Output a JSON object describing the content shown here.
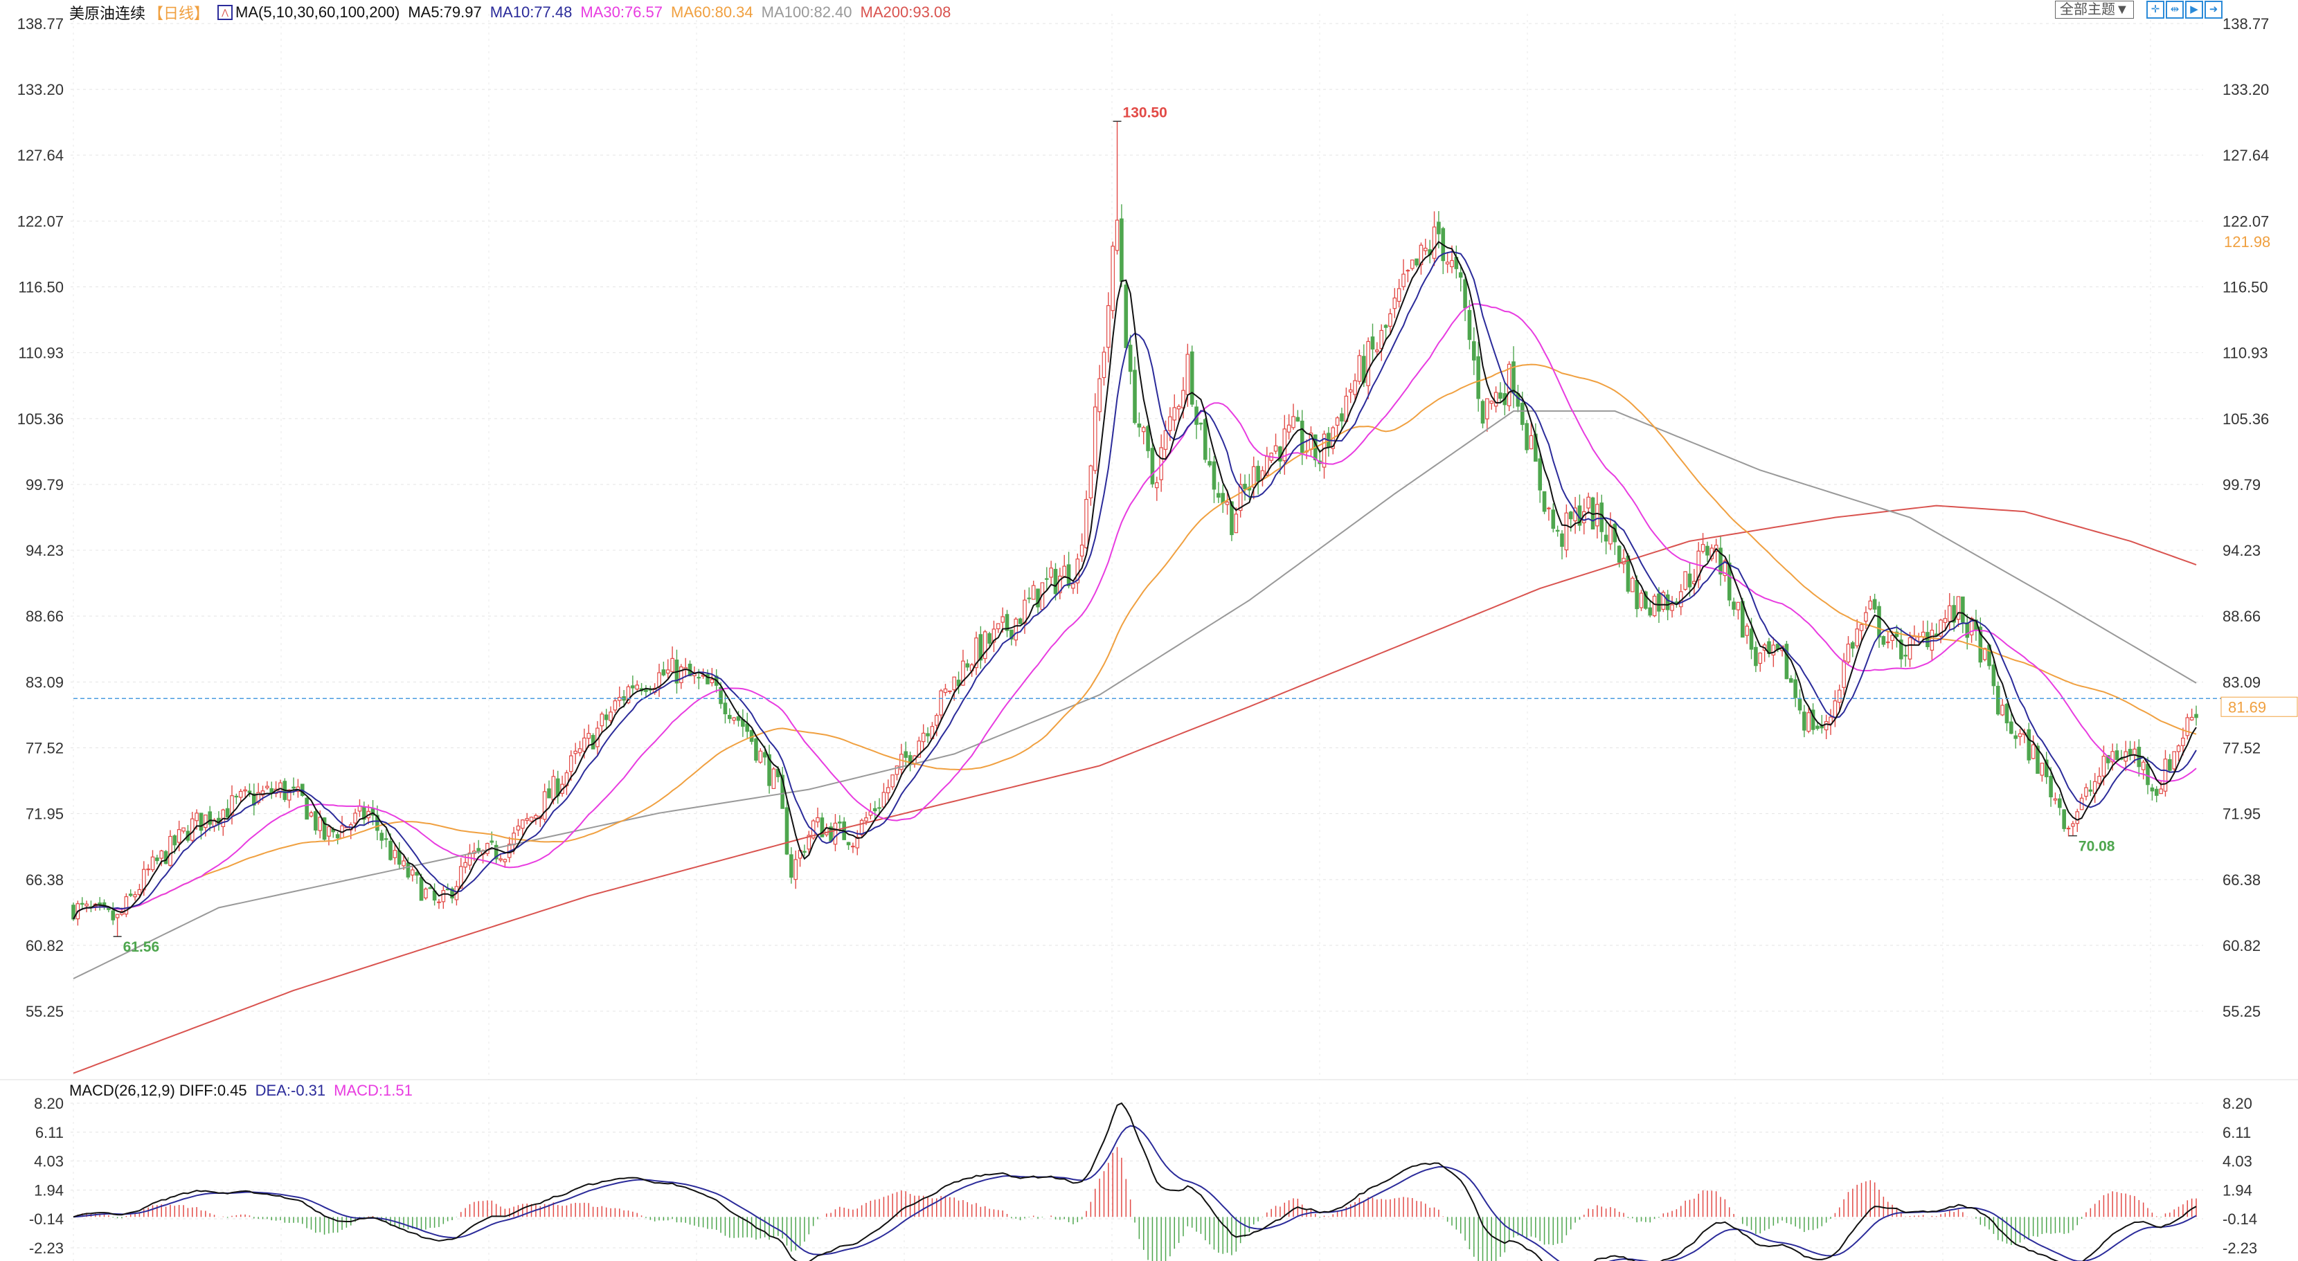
{
  "header": {
    "instrument": "美原油连续",
    "period": "【日线】",
    "ma_params": "MA(5,10,30,60,100,200)",
    "ma5": "MA5:79.97",
    "ma10": "MA10:77.48",
    "ma30": "MA30:76.57",
    "ma60": "MA60:80.34",
    "ma100": "MA100:82.40",
    "ma200": "MA200:93.08"
  },
  "toolbar": {
    "theme_select": "全部主题▼",
    "icons": [
      "crosshair-icon",
      "zoom-range-icon",
      "play-forward-icon",
      "move-right-icon"
    ]
  },
  "colors": {
    "up": "#e24a46",
    "down": "#4ea64e",
    "ma5": "#111111",
    "ma10": "#2b2b9a",
    "ma30": "#e83ce0",
    "ma60": "#f0a040",
    "ma100": "#999999",
    "ma200": "#d9534f",
    "last": "#4a9be0",
    "diff": "#111111",
    "dea": "#2b2b9a"
  },
  "macd_header": {
    "params": "MACD(26,12,9)",
    "diff": "DIFF:0.45",
    "dea": "DEA:-0.31",
    "macd": "MACD:1.51"
  },
  "chart_data": [
    {
      "type": "candlestick",
      "title": "美原油连续 日线",
      "price_axis_ticks": [
        "138.77",
        "133.20",
        "127.64",
        "122.07",
        "116.50",
        "110.93",
        "105.36",
        "99.79",
        "94.23",
        "88.66",
        "83.09",
        "77.52",
        "71.95",
        "66.38",
        "60.82",
        "55.25"
      ],
      "ylim": [
        55.25,
        138.77
      ],
      "bar_count": 483,
      "close_path": [
        [
          0,
          64
        ],
        [
          10,
          63
        ],
        [
          17,
          67
        ],
        [
          27,
          71
        ],
        [
          38,
          73
        ],
        [
          47,
          74
        ],
        [
          52,
          73
        ],
        [
          57,
          70
        ],
        [
          62,
          71
        ],
        [
          67,
          72
        ],
        [
          73,
          68
        ],
        [
          83,
          64
        ],
        [
          90,
          68
        ],
        [
          98,
          69
        ],
        [
          107,
          73
        ],
        [
          117,
          78
        ],
        [
          127,
          83
        ],
        [
          137,
          84
        ],
        [
          147,
          82
        ],
        [
          153,
          79
        ],
        [
          160,
          74
        ],
        [
          163,
          67
        ],
        [
          168,
          71
        ],
        [
          177,
          70
        ],
        [
          183,
          73
        ],
        [
          193,
          79
        ],
        [
          203,
          85
        ],
        [
          213,
          88
        ],
        [
          220,
          91
        ],
        [
          228,
          93
        ],
        [
          232,
          105
        ],
        [
          237,
          122
        ],
        [
          240,
          108
        ],
        [
          245,
          100
        ],
        [
          250,
          106
        ],
        [
          253,
          110
        ],
        [
          258,
          101
        ],
        [
          263,
          97
        ],
        [
          270,
          102
        ],
        [
          277,
          104
        ],
        [
          283,
          102
        ],
        [
          290,
          108
        ],
        [
          297,
          112
        ],
        [
          303,
          117
        ],
        [
          310,
          121
        ],
        [
          315,
          116
        ],
        [
          320,
          106
        ],
        [
          327,
          109
        ],
        [
          332,
          101
        ],
        [
          337,
          95
        ],
        [
          343,
          98
        ],
        [
          350,
          95
        ],
        [
          355,
          90
        ],
        [
          362,
          90
        ],
        [
          367,
          92
        ],
        [
          372,
          95
        ],
        [
          377,
          90
        ],
        [
          382,
          85
        ],
        [
          388,
          85
        ],
        [
          393,
          80
        ],
        [
          398,
          79
        ],
        [
          403,
          86
        ],
        [
          408,
          89
        ],
        [
          413,
          86
        ],
        [
          418,
          86
        ],
        [
          423,
          88
        ],
        [
          428,
          89
        ],
        [
          433,
          86
        ],
        [
          438,
          80
        ],
        [
          445,
          77
        ],
        [
          453,
          71
        ],
        [
          458,
          74
        ],
        [
          463,
          77
        ],
        [
          468,
          77
        ],
        [
          473,
          74
        ],
        [
          478,
          78
        ],
        [
          482,
          81
        ]
      ],
      "ma100_path": [
        [
          0,
          58
        ],
        [
          33,
          64
        ],
        [
          83,
          68
        ],
        [
          133,
          72
        ],
        [
          167,
          74
        ],
        [
          200,
          77
        ],
        [
          233,
          82
        ],
        [
          267,
          90
        ],
        [
          300,
          99
        ],
        [
          327,
          106
        ],
        [
          350,
          106
        ],
        [
          383,
          101
        ],
        [
          417,
          97
        ],
        [
          450,
          90
        ],
        [
          482,
          83
        ]
      ],
      "ma200_path": [
        [
          0,
          50
        ],
        [
          50,
          57
        ],
        [
          117,
          65
        ],
        [
          167,
          70
        ],
        [
          200,
          73
        ],
        [
          233,
          76
        ],
        [
          267,
          81
        ],
        [
          300,
          86
        ],
        [
          333,
          91
        ],
        [
          367,
          95
        ],
        [
          400,
          97
        ],
        [
          423,
          98
        ],
        [
          443,
          97.5
        ],
        [
          467,
          95
        ],
        [
          482,
          93
        ]
      ],
      "annotations": {
        "high": {
          "index": 237,
          "value": "130.50"
        },
        "low_left": {
          "index": 10,
          "value": "61.56"
        },
        "low_right": {
          "index": 454,
          "value": "70.08"
        }
      },
      "last_price": "81.69",
      "right_marker": "121.98",
      "series": [
        {
          "name": "MA5"
        },
        {
          "name": "MA10"
        },
        {
          "name": "MA30"
        },
        {
          "name": "MA60"
        },
        {
          "name": "MA100"
        },
        {
          "name": "MA200"
        }
      ]
    },
    {
      "type": "macd",
      "axis_ticks": [
        "8.20",
        "6.11",
        "4.03",
        "1.94",
        "-0.14",
        "-2.23"
      ],
      "ylim": [
        -2.23,
        8.2
      ],
      "series": [
        {
          "name": "DIFF"
        },
        {
          "name": "DEA"
        },
        {
          "name": "MACD"
        }
      ]
    }
  ]
}
